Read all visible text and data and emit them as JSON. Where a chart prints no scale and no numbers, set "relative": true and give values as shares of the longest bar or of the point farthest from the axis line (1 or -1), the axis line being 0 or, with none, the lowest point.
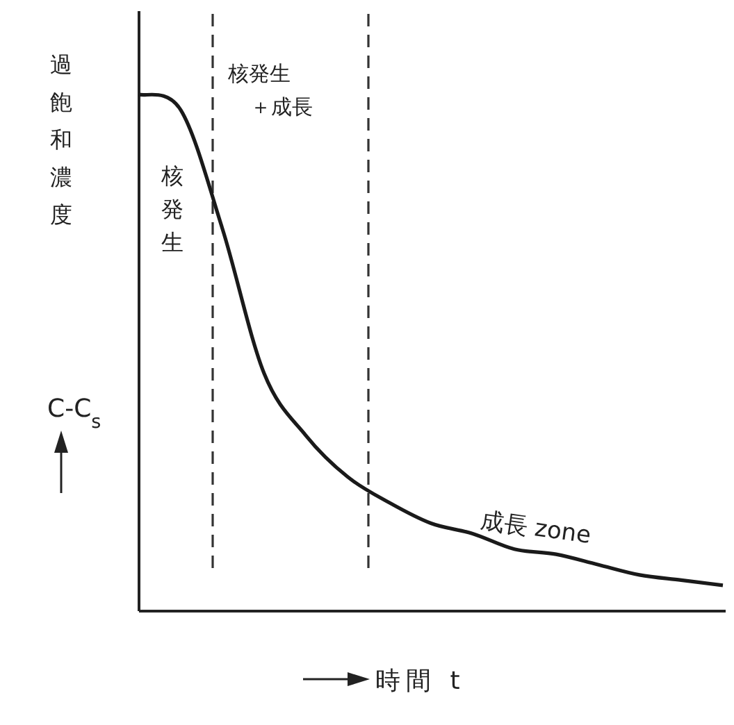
{
  "chart_data": {
    "type": "line",
    "relative": true,
    "xlabel": "時間 t",
    "ylabel": "過飽和濃度",
    "categories": [
      null,
      null,
      null,
      null,
      null,
      null,
      null,
      null,
      null,
      null,
      null,
      null,
      null,
      null,
      null
    ],
    "series": [
      {
        "color": "#1a1a1a",
        "values": [
          1.0,
          0.97,
          0.74,
          0.46,
          0.34,
          0.26,
          0.21,
          0.17,
          0.15,
          0.12,
          0.11,
          0.09,
          0.07,
          0.06,
          0.05
        ]
      }
    ],
    "annotations": [
      "核発生",
      "核発生",
      "＋成長",
      "成長 zone",
      "C-C$_{s}$"
    ],
    "marker": "none",
    "line_style": "solid"
  }
}
